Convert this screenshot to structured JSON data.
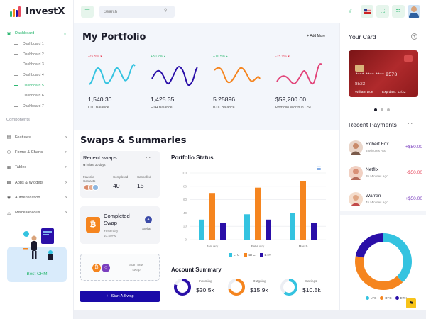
{
  "brand": {
    "name": "InvestX"
  },
  "topbar": {
    "search_placeholder": "Search",
    "user_flag": "us-flag",
    "icons": [
      "menu-icon",
      "search-icon",
      "moon-icon",
      "flag-icon",
      "fullscreen-icon",
      "settings-icon",
      "avatar"
    ]
  },
  "sidebar": {
    "dashboard": "Dashboard",
    "subitems": [
      "Dashboard 1",
      "Dashboard 2",
      "Dashboard 3",
      "Dashboard 4",
      "Dashboard 5",
      "Dashboard 6",
      "Dashboard 7"
    ],
    "active_sub": "Dashboard 5",
    "section_label": "Components",
    "items": [
      "Features",
      "Forms & Charts",
      "Tables",
      "Apps & Widgets",
      "Authentication",
      "Miscellaneous"
    ],
    "crm_label": "Best CRM"
  },
  "portfolio": {
    "title": "My Portfolio",
    "add_more": "+ Add More",
    "coins": [
      {
        "pct": "-25.5% ▾",
        "trend": "neg",
        "value": "1,540.30",
        "label": "LTC Balance",
        "color": "#34c3e0"
      },
      {
        "pct": "+30.2% ▴",
        "trend": "pos",
        "value": "1,425.35",
        "label": "ETH Balance",
        "color": "#2a0fa8"
      },
      {
        "pct": "+10.5% ▴",
        "trend": "pos",
        "value": "5.25896",
        "label": "BTC Balance",
        "color": "#f5851f"
      },
      {
        "pct": "-15.9% ▾",
        "trend": "neg",
        "value": "$59,200.00",
        "label": "Portfolio Worth in USD",
        "color": "#e2457a"
      }
    ]
  },
  "swaps": {
    "title": "Swaps & Summaries",
    "recent": {
      "title": "Recent swaps",
      "sub": "⇆ in last 30 days",
      "fav_label_1": "Favorite",
      "fav_label_2": "Contacts",
      "completed_label": "Completed",
      "completed_value": "40",
      "cancelled_label": "Cancelled",
      "cancelled_value": "15"
    },
    "completed_swap": {
      "title_1": "Completed",
      "title_2": "Swap",
      "time_1": "Yesterday",
      "time_2": "10:40PM",
      "coin": "Stellar",
      "btc_symbol": "₿"
    },
    "new_swap": {
      "line1": "Start new",
      "line2": "swap"
    },
    "start_button": "Start A Swap"
  },
  "status": {
    "title": "Portfolio Status"
  },
  "chart_data": {
    "type": "bar",
    "title": "Portfolio Status",
    "categories": [
      "January",
      "February",
      "March"
    ],
    "series": [
      {
        "name": "LTC",
        "color": "#34c3e0",
        "values": [
          30,
          38,
          40
        ]
      },
      {
        "name": "BTC",
        "color": "#f5851f",
        "values": [
          70,
          78,
          88
        ]
      },
      {
        "name": "ETH",
        "color": "#2a0fa8",
        "values": [
          25,
          30,
          25
        ]
      }
    ],
    "ylim": [
      0,
      100
    ],
    "yticks": [
      0,
      20,
      40,
      60,
      80,
      100
    ],
    "grid": true,
    "legend": "bottom"
  },
  "account": {
    "title": "Account Summary",
    "items": [
      {
        "label": "Incoming",
        "value": "$20.5k",
        "color": "#2a0fa8",
        "pct": 0.8
      },
      {
        "label": "Outgoing",
        "value": "$15.9k",
        "color": "#f5851f",
        "pct": 0.7
      },
      {
        "label": "Savings",
        "value": "$10.5k",
        "color": "#34c3e0",
        "pct": 0.6
      }
    ]
  },
  "card": {
    "title": "Your Card",
    "number": "**** **** **** 9578",
    "small": "8523",
    "name": "William Doe",
    "expiry": "Exp date: 12/22"
  },
  "payments": {
    "title": "Recent Payments",
    "rows": [
      {
        "name": "Robert Fox",
        "time": "3 Minutes Ago",
        "amount": "+$50.00",
        "trend": "pos",
        "avatar_color": "#c98a6a"
      },
      {
        "name": "Netflix",
        "time": "35 Minutes Ago",
        "amount": "-$50.00",
        "trend": "neg",
        "avatar_color": "#d89077"
      },
      {
        "name": "Warren",
        "time": "45 Minutes Ago",
        "amount": "+$50.00",
        "trend": "pos",
        "avatar_color": "#e0a785"
      }
    ]
  },
  "donut": {
    "segments": [
      {
        "name": "LTC",
        "color": "#34c3e0",
        "value": 38
      },
      {
        "name": "BTC",
        "color": "#f5851f",
        "value": 40
      },
      {
        "name": "ETH",
        "color": "#2a0fa8",
        "value": 22
      }
    ]
  },
  "help_icon": "⚑"
}
